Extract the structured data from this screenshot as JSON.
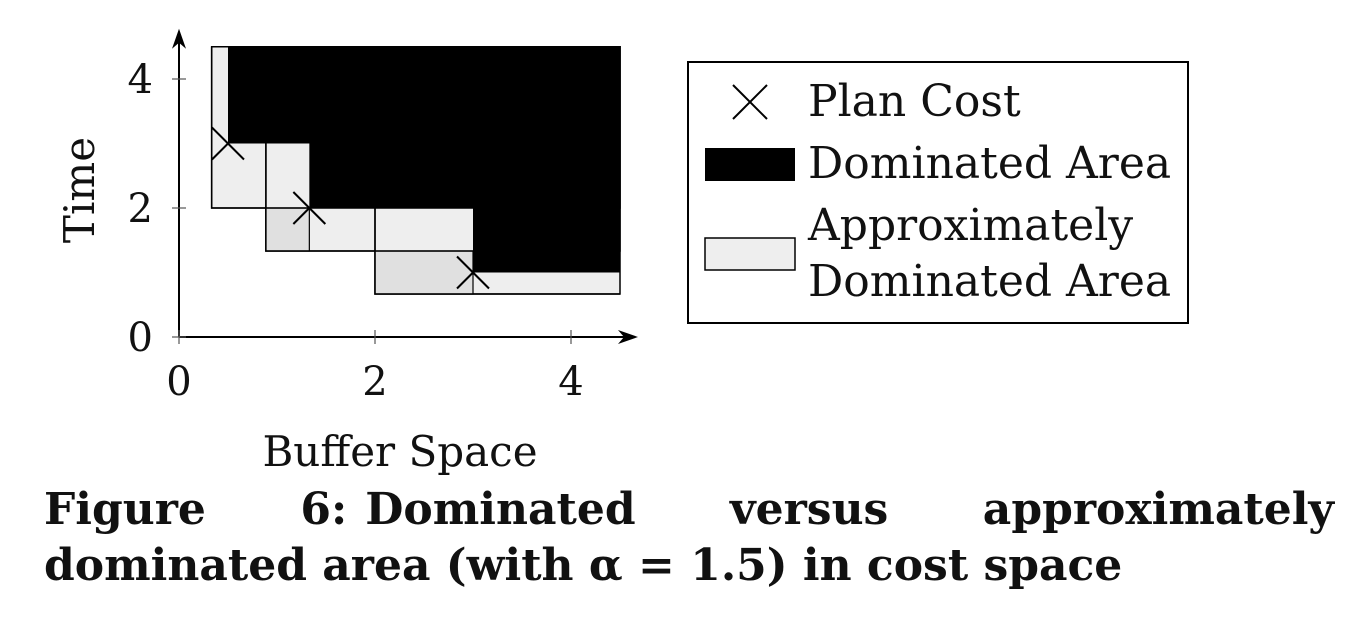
{
  "chart_data": {
    "type": "area",
    "xlabel": "Buffer Space",
    "ylabel": "Time",
    "xlim": [
      0,
      4.5
    ],
    "ylim": [
      0,
      4.5
    ],
    "xticks": [
      "0",
      "2",
      "4"
    ],
    "yticks": [
      "0",
      "2",
      "4"
    ],
    "alpha": 1.5,
    "plan_costs": [
      {
        "x": 0.5,
        "y": 3
      },
      {
        "x": 1.33,
        "y": 2
      },
      {
        "x": 3,
        "y": 1
      }
    ],
    "legend": {
      "placement": "right",
      "entries": [
        {
          "label": "Plan Cost",
          "symbol": "cross"
        },
        {
          "label": "Dominated Area",
          "symbol": "black-box"
        },
        {
          "label_lines": [
            "Approximately",
            "Dominated Area"
          ],
          "symbol": "gray-box"
        }
      ]
    },
    "colors": {
      "dominated": "#000000",
      "approx_fill": "#eeeeee",
      "approx_overlap": "#e0e0e0",
      "axis": "#000000"
    }
  },
  "caption": {
    "label": "Figure 6:",
    "text": "Dominated versus approximately dominated area (with α = 1.5) in cost space"
  }
}
